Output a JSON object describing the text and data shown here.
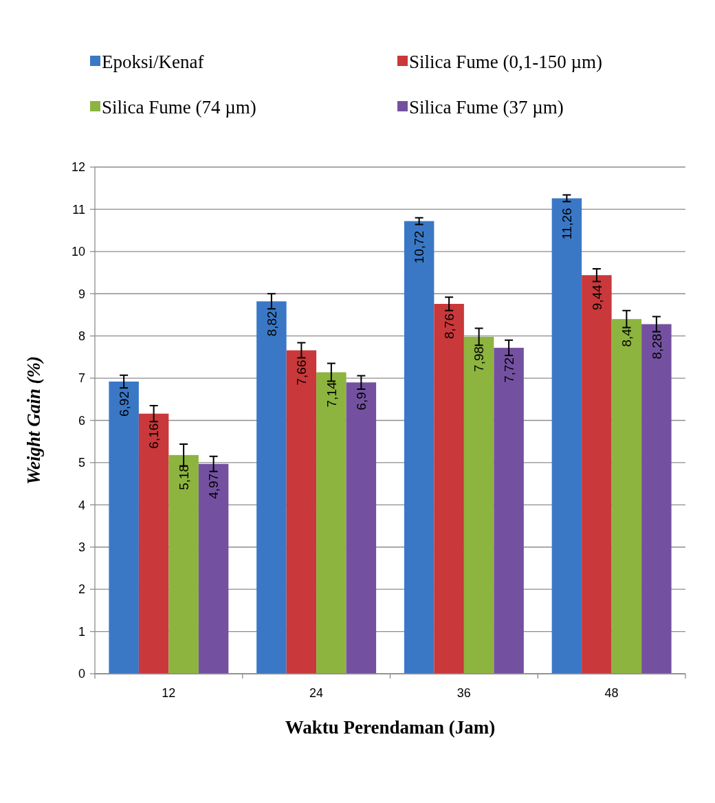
{
  "chart_data": {
    "type": "bar",
    "xlabel": "Waktu Perendaman (Jam)",
    "ylabel": "Weight Gain (%)",
    "categories": [
      "12",
      "24",
      "36",
      "48"
    ],
    "series": [
      {
        "name": "Epoksi/Kenaf",
        "color": "#3a78c6",
        "values": [
          6.92,
          8.82,
          10.72,
          11.26
        ],
        "errors": [
          0.15,
          0.18,
          0.08,
          0.08
        ]
      },
      {
        "name": "Silica Fume (0,1-150 µm)",
        "color": "#c9383a",
        "values": [
          6.16,
          7.66,
          8.76,
          9.44
        ],
        "errors": [
          0.19,
          0.18,
          0.16,
          0.15
        ]
      },
      {
        "name": "Silica Fume (74 µm)",
        "color": "#8db43f",
        "values": [
          5.18,
          7.14,
          7.98,
          8.4
        ],
        "errors": [
          0.26,
          0.21,
          0.2,
          0.2
        ]
      },
      {
        "name": "Silica Fume (37 µm)",
        "color": "#7451a0",
        "values": [
          4.97,
          6.9,
          7.72,
          8.28
        ],
        "errors": [
          0.18,
          0.16,
          0.18,
          0.18
        ]
      }
    ],
    "value_labels": [
      [
        "6,92",
        "8,82",
        "10,72",
        "11,26"
      ],
      [
        "6,16",
        "7,66",
        "8,76",
        "9,44"
      ],
      [
        "5,18",
        "7,14",
        "7,98",
        "8,4"
      ],
      [
        "4,97",
        "6,9",
        "7,72",
        "8,28"
      ]
    ],
    "ylim": [
      0,
      12
    ],
    "yticks": [
      0,
      1,
      2,
      3,
      4,
      5,
      6,
      7,
      8,
      9,
      10,
      11,
      12
    ],
    "grid": "y",
    "legend": "top"
  }
}
